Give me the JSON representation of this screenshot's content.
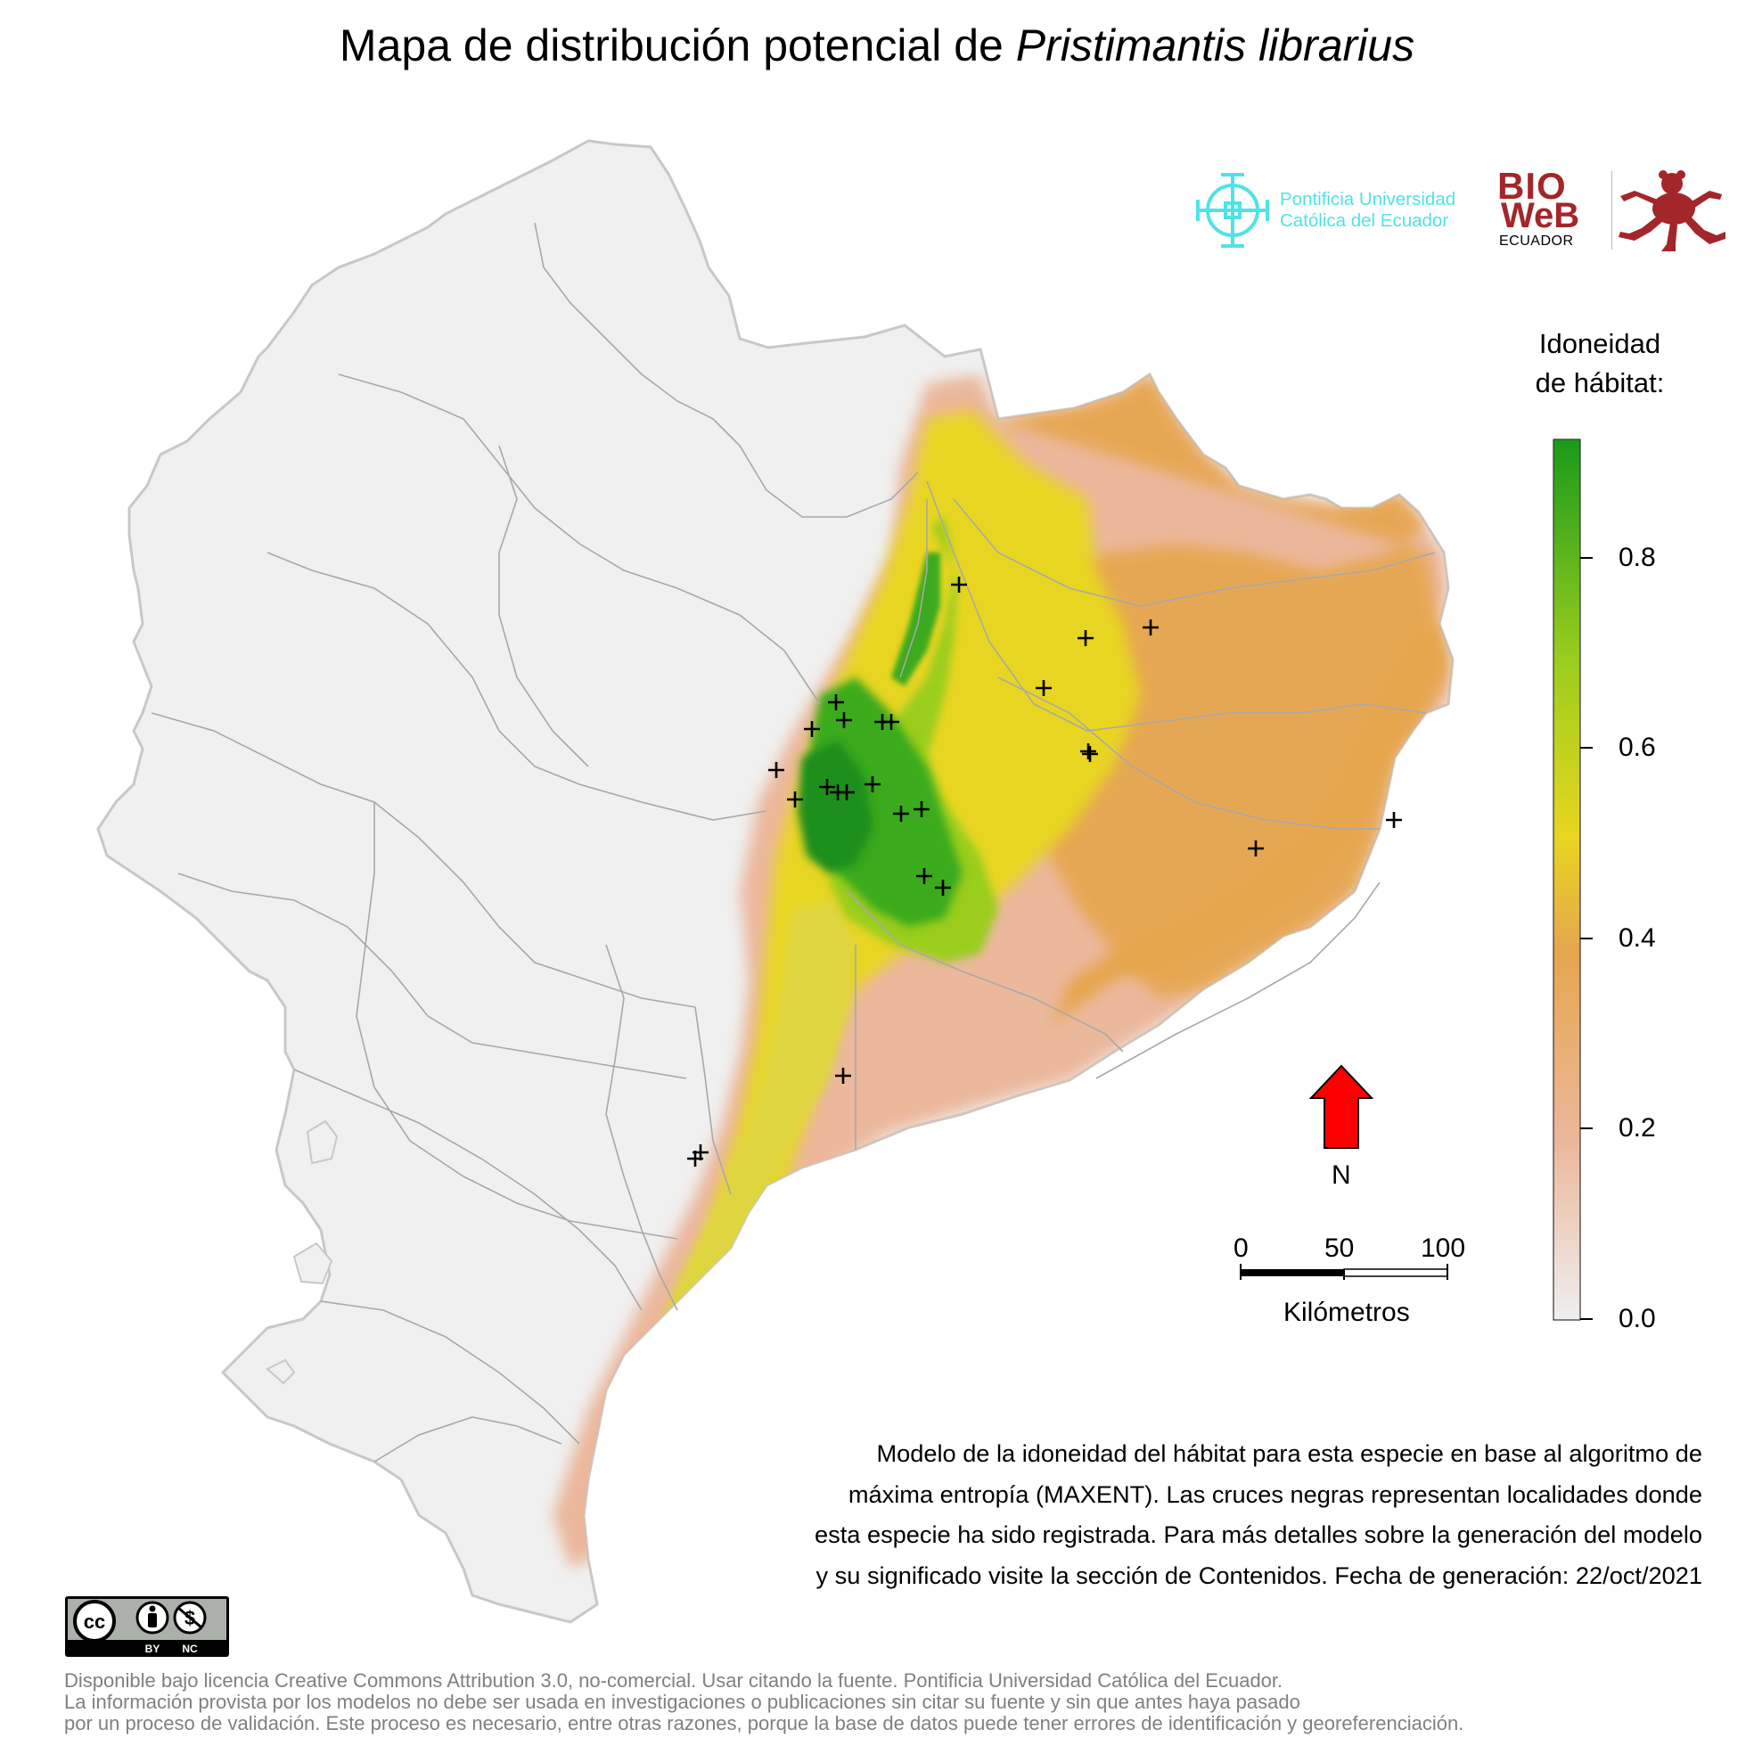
{
  "title": {
    "prefix": "Mapa de distribución potencial de ",
    "species": "Pristimantis librarius"
  },
  "logos": {
    "puce": {
      "line1": "Pontificia Universidad",
      "line2": "Católica del Ecuador",
      "color": "#4fe3e6"
    },
    "bioweb": {
      "word1": "BIO",
      "word2": "WeB",
      "word3": "ECUADOR",
      "color": "#a3262a"
    }
  },
  "legend": {
    "title_line1": "Idoneidad",
    "title_line2": "de hábitat:",
    "ticks": [
      "0.8",
      "0.6",
      "0.4",
      "0.2",
      "0.0"
    ],
    "colors": [
      "#efefef",
      "#ebb89c",
      "#e6a64e",
      "#e8d520",
      "#9acd1e",
      "#1a9a1a"
    ]
  },
  "north_arrow": {
    "label": "N",
    "color": "#ff0000"
  },
  "scale_bar": {
    "labels": [
      "0",
      "50",
      "100"
    ],
    "unit": "Kilómetros"
  },
  "description": {
    "line1": "Modelo de la idoneidad del hábitat para esta especie en base al algoritmo de",
    "line2": "máxima entropía (MAXENT). Las cruces negras representan localidades donde",
    "line3": "esta especie ha sido registrada. Para más detalles sobre la generación del modelo",
    "line4": "y su significado visite la sección de Contenidos. Fecha de generación: 22/oct/2021"
  },
  "license_badge": {
    "cc": "cc",
    "by": "BY",
    "nc": "NC"
  },
  "license": {
    "line1": "Disponible bajo licencia Creative Commons Attribution 3.0, no-comercial. Usar citando la fuente. Pontificia Universidad Católica del Ecuador.",
    "line2": "La información provista por los modelos no debe ser usada en investigaciones o publicaciones sin citar su fuente y sin que antes haya pasado",
    "line3": "por un proceso de validación. Este proceso es necesario, entre otras razones, porque la base de datos puede tener errores de identificación y georeferenciación."
  },
  "map_colors": {
    "land": "#f0f0f0",
    "borders": "#a8a8a8",
    "marker": "#000000"
  }
}
